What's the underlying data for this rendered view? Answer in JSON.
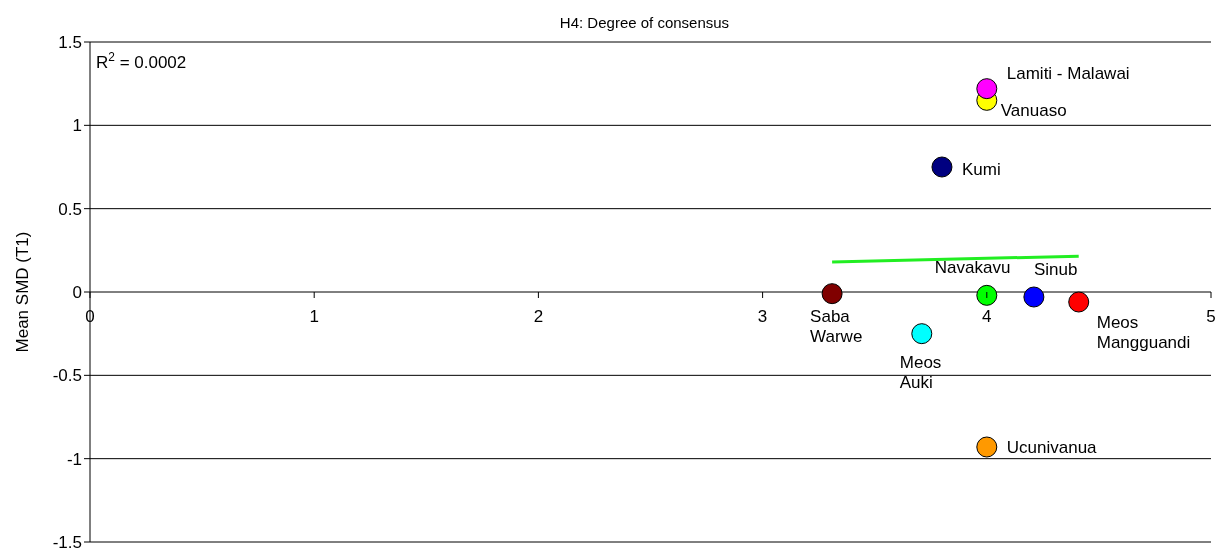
{
  "chart_data": {
    "type": "scatter",
    "title": "H4: Degree of consensus",
    "ylabel": "Mean SMD (T1)",
    "xlim": [
      0,
      5
    ],
    "xticks": [
      0,
      1,
      2,
      3,
      4,
      5
    ],
    "ylim": [
      -1.5,
      1.5
    ],
    "yticks": [
      -1.5,
      -1,
      -0.5,
      0,
      0.5,
      1,
      1.5
    ],
    "grid": "y",
    "legend": false,
    "marker": "circle",
    "annotations": [
      "R$^{2}$ = 0.0002"
    ],
    "series": [
      {
        "name": "Saba\nWarwe",
        "color": "#800000",
        "x": [
          3.31
        ],
        "values": [
          -0.01
        ]
      },
      {
        "name": "Meos\nAuki",
        "color": "#00ffff",
        "x": [
          3.71
        ],
        "values": [
          -0.25
        ]
      },
      {
        "name": "Navakavu",
        "color": "#00ff00",
        "x": [
          4.0
        ],
        "values": [
          -0.02
        ]
      },
      {
        "name": "Sinub",
        "color": "#0000ff",
        "x": [
          4.21
        ],
        "values": [
          -0.03
        ]
      },
      {
        "name": "Meos\nMangguandi",
        "color": "#ff0000",
        "x": [
          4.41
        ],
        "values": [
          -0.06
        ]
      },
      {
        "name": "Ucunivanua",
        "color": "#ff9900",
        "x": [
          4.0
        ],
        "values": [
          -0.93
        ]
      },
      {
        "name": "Kumi",
        "color": "#000080",
        "x": [
          3.8
        ],
        "values": [
          0.75
        ]
      },
      {
        "name": "Vanuaso",
        "color": "#ffff00",
        "x": [
          4.0
        ],
        "values": [
          1.15
        ]
      },
      {
        "name": "Lamiti - Malawai",
        "color": "#ff00ff",
        "x": [
          4.0
        ],
        "values": [
          1.22
        ]
      },
      {
        "type": "line",
        "color": "#22ee22",
        "x": [
          3.31,
          4.41
        ],
        "values": [
          0.18,
          0.215
        ],
        "marker": "none"
      }
    ]
  }
}
